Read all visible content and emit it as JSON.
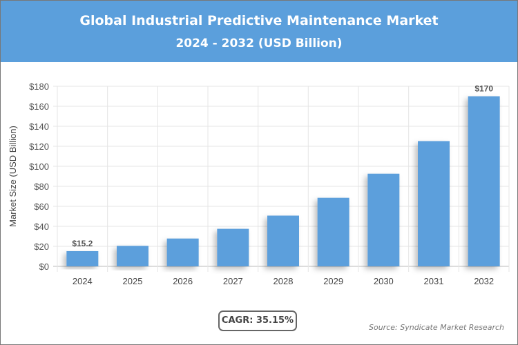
{
  "header": {
    "title": "Global Industrial Predictive Maintenance Market",
    "subtitle": "2024 - 2032 (USD Billion)"
  },
  "chart_data": {
    "type": "bar",
    "title": "Global Industrial Predictive Maintenance Market",
    "subtitle": "2024 - 2032 (USD Billion)",
    "ylabel": "Market Size (USD Billion)",
    "xlabel": "",
    "categories": [
      "2024",
      "2025",
      "2026",
      "2027",
      "2028",
      "2029",
      "2030",
      "2031",
      "2032"
    ],
    "values": [
      15.2,
      20.5,
      27.8,
      37.5,
      50.7,
      68.5,
      92.6,
      125.2,
      170
    ],
    "data_labels": {
      "0": "$15.2",
      "8": "$170"
    },
    "ylim": [
      0,
      180
    ],
    "yticks": [
      "$0",
      "$20",
      "$40",
      "$60",
      "$80",
      "$100",
      "$120",
      "$140",
      "$160",
      "$180"
    ],
    "grid": true,
    "bar_color": "#5b9fdc"
  },
  "footer": {
    "cagr": "CAGR: 35.15%",
    "source": "Source: Syndicate Market Research"
  }
}
